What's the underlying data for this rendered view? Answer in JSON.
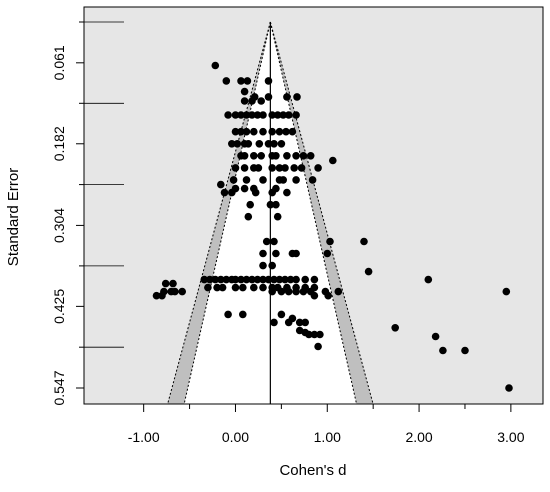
{
  "chart_data": {
    "type": "scatter",
    "title": "",
    "xlabel": "Cohen's d",
    "ylabel": "Standard Error",
    "xlim": [
      -1.65,
      3.35
    ],
    "ylim": [
      0.547,
      0.0
    ],
    "y_reversed": true,
    "grid": false,
    "x_ticks": [
      -1.0,
      0.0,
      1.0,
      2.0,
      3.0
    ],
    "x_tick_labels": [
      "-1.00",
      "0.00",
      "1.00",
      "2.00",
      "3.00"
    ],
    "y_ticks": [
      0.061,
      0.182,
      0.304,
      0.425,
      0.547
    ],
    "y_tick_labels": [
      "0.061",
      "0.182",
      "0.304",
      "0.425",
      "0.547"
    ],
    "y_minor_ticks": [
      0.0,
      0.1215,
      0.243,
      0.3645,
      0.486
    ],
    "funnel": {
      "center": 0.38,
      "z_inner": 1.645,
      "z_outer": 1.96,
      "se_max": 0.547
    },
    "colors": {
      "plot_background": "#e6e6e6",
      "funnel_inner": "#ffffff",
      "contour_band": "#bfbfbf",
      "points": "#000000"
    },
    "points": [
      [
        -0.22,
        0.065
      ],
      [
        -0.1,
        0.088
      ],
      [
        0.06,
        0.088
      ],
      [
        0.13,
        0.088
      ],
      [
        0.36,
        0.088
      ],
      [
        0.1,
        0.104
      ],
      [
        0.21,
        0.112
      ],
      [
        0.36,
        0.112
      ],
      [
        0.56,
        0.112
      ],
      [
        0.67,
        0.112
      ],
      [
        0.1,
        0.118
      ],
      [
        0.18,
        0.118
      ],
      [
        0.28,
        0.118
      ],
      [
        -0.08,
        0.139
      ],
      [
        0.0,
        0.139
      ],
      [
        0.06,
        0.139
      ],
      [
        0.12,
        0.139
      ],
      [
        0.18,
        0.139
      ],
      [
        0.24,
        0.139
      ],
      [
        0.3,
        0.139
      ],
      [
        0.4,
        0.139
      ],
      [
        0.46,
        0.139
      ],
      [
        0.52,
        0.139
      ],
      [
        0.58,
        0.139
      ],
      [
        0.66,
        0.139
      ],
      [
        0.0,
        0.164
      ],
      [
        0.06,
        0.164
      ],
      [
        0.12,
        0.164
      ],
      [
        0.2,
        0.164
      ],
      [
        0.3,
        0.164
      ],
      [
        0.4,
        0.164
      ],
      [
        0.48,
        0.164
      ],
      [
        0.55,
        0.164
      ],
      [
        0.62,
        0.164
      ],
      [
        -0.04,
        0.182
      ],
      [
        0.02,
        0.182
      ],
      [
        0.1,
        0.182
      ],
      [
        0.14,
        0.182
      ],
      [
        0.26,
        0.182
      ],
      [
        0.36,
        0.182
      ],
      [
        0.42,
        0.182
      ],
      [
        0.5,
        0.182
      ],
      [
        0.06,
        0.2
      ],
      [
        0.1,
        0.2
      ],
      [
        0.2,
        0.2
      ],
      [
        0.28,
        0.2
      ],
      [
        0.4,
        0.2
      ],
      [
        0.44,
        0.2
      ],
      [
        0.56,
        0.2
      ],
      [
        0.66,
        0.2
      ],
      [
        0.74,
        0.2
      ],
      [
        0.82,
        0.2
      ],
      [
        1.06,
        0.207
      ],
      [
        0.0,
        0.218
      ],
      [
        0.1,
        0.218
      ],
      [
        0.2,
        0.218
      ],
      [
        0.25,
        0.218
      ],
      [
        0.4,
        0.218
      ],
      [
        0.48,
        0.218
      ],
      [
        0.54,
        0.218
      ],
      [
        0.64,
        0.218
      ],
      [
        0.72,
        0.218
      ],
      [
        0.9,
        0.218
      ],
      [
        -0.02,
        0.236
      ],
      [
        0.12,
        0.236
      ],
      [
        0.3,
        0.236
      ],
      [
        0.48,
        0.236
      ],
      [
        0.52,
        0.236
      ],
      [
        0.66,
        0.236
      ],
      [
        0.84,
        0.236
      ],
      [
        -0.16,
        0.243
      ],
      [
        0.0,
        0.249
      ],
      [
        0.1,
        0.249
      ],
      [
        0.2,
        0.249
      ],
      [
        0.44,
        0.249
      ],
      [
        -0.12,
        0.255
      ],
      [
        -0.04,
        0.255
      ],
      [
        0.22,
        0.255
      ],
      [
        0.4,
        0.255
      ],
      [
        0.56,
        0.255
      ],
      [
        0.16,
        0.273
      ],
      [
        0.38,
        0.273
      ],
      [
        0.44,
        0.273
      ],
      [
        0.14,
        0.291
      ],
      [
        0.46,
        0.291
      ],
      [
        0.34,
        0.328
      ],
      [
        0.42,
        0.328
      ],
      [
        1.03,
        0.328
      ],
      [
        1.4,
        0.328
      ],
      [
        0.3,
        0.346
      ],
      [
        0.44,
        0.346
      ],
      [
        0.62,
        0.346
      ],
      [
        0.66,
        0.346
      ],
      [
        1.0,
        0.346
      ],
      [
        0.3,
        0.364
      ],
      [
        0.4,
        0.364
      ],
      [
        1.45,
        0.373
      ],
      [
        -0.34,
        0.385
      ],
      [
        -0.28,
        0.385
      ],
      [
        -0.22,
        0.385
      ],
      [
        -0.16,
        0.385
      ],
      [
        -0.1,
        0.385
      ],
      [
        -0.04,
        0.385
      ],
      [
        0.0,
        0.385
      ],
      [
        0.06,
        0.385
      ],
      [
        0.12,
        0.385
      ],
      [
        0.18,
        0.385
      ],
      [
        0.24,
        0.385
      ],
      [
        0.3,
        0.385
      ],
      [
        0.36,
        0.385
      ],
      [
        0.42,
        0.385
      ],
      [
        0.48,
        0.385
      ],
      [
        0.54,
        0.385
      ],
      [
        0.6,
        0.385
      ],
      [
        0.66,
        0.385
      ],
      [
        0.76,
        0.385
      ],
      [
        0.86,
        0.385
      ],
      [
        2.1,
        0.385
      ],
      [
        -0.76,
        0.391
      ],
      [
        -0.68,
        0.391
      ],
      [
        -0.3,
        0.397
      ],
      [
        -0.2,
        0.397
      ],
      [
        -0.14,
        0.397
      ],
      [
        0.0,
        0.397
      ],
      [
        0.08,
        0.397
      ],
      [
        0.2,
        0.397
      ],
      [
        0.3,
        0.397
      ],
      [
        0.4,
        0.397
      ],
      [
        0.46,
        0.397
      ],
      [
        0.56,
        0.397
      ],
      [
        0.66,
        0.397
      ],
      [
        0.76,
        0.397
      ],
      [
        0.86,
        0.397
      ],
      [
        -0.78,
        0.403
      ],
      [
        -0.7,
        0.403
      ],
      [
        -0.66,
        0.403
      ],
      [
        -0.58,
        0.403
      ],
      [
        0.4,
        0.403
      ],
      [
        0.5,
        0.403
      ],
      [
        0.58,
        0.403
      ],
      [
        0.66,
        0.403
      ],
      [
        0.74,
        0.403
      ],
      [
        0.82,
        0.403
      ],
      [
        0.98,
        0.403
      ],
      [
        1.12,
        0.403
      ],
      [
        2.95,
        0.403
      ],
      [
        -0.86,
        0.409
      ],
      [
        -0.8,
        0.409
      ],
      [
        0.86,
        0.409
      ],
      [
        1.01,
        0.409
      ],
      [
        -0.08,
        0.437
      ],
      [
        0.08,
        0.437
      ],
      [
        0.5,
        0.437
      ],
      [
        0.62,
        0.443
      ],
      [
        0.58,
        0.449
      ],
      [
        0.7,
        0.449
      ],
      [
        0.76,
        0.449
      ],
      [
        0.42,
        0.449
      ],
      [
        0.7,
        0.461
      ],
      [
        0.76,
        0.464
      ],
      [
        0.8,
        0.467
      ],
      [
        0.86,
        0.467
      ],
      [
        0.92,
        0.467
      ],
      [
        1.74,
        0.457
      ],
      [
        0.9,
        0.485
      ],
      [
        2.18,
        0.47
      ],
      [
        2.26,
        0.491
      ],
      [
        2.5,
        0.491
      ],
      [
        2.98,
        0.547
      ]
    ]
  }
}
